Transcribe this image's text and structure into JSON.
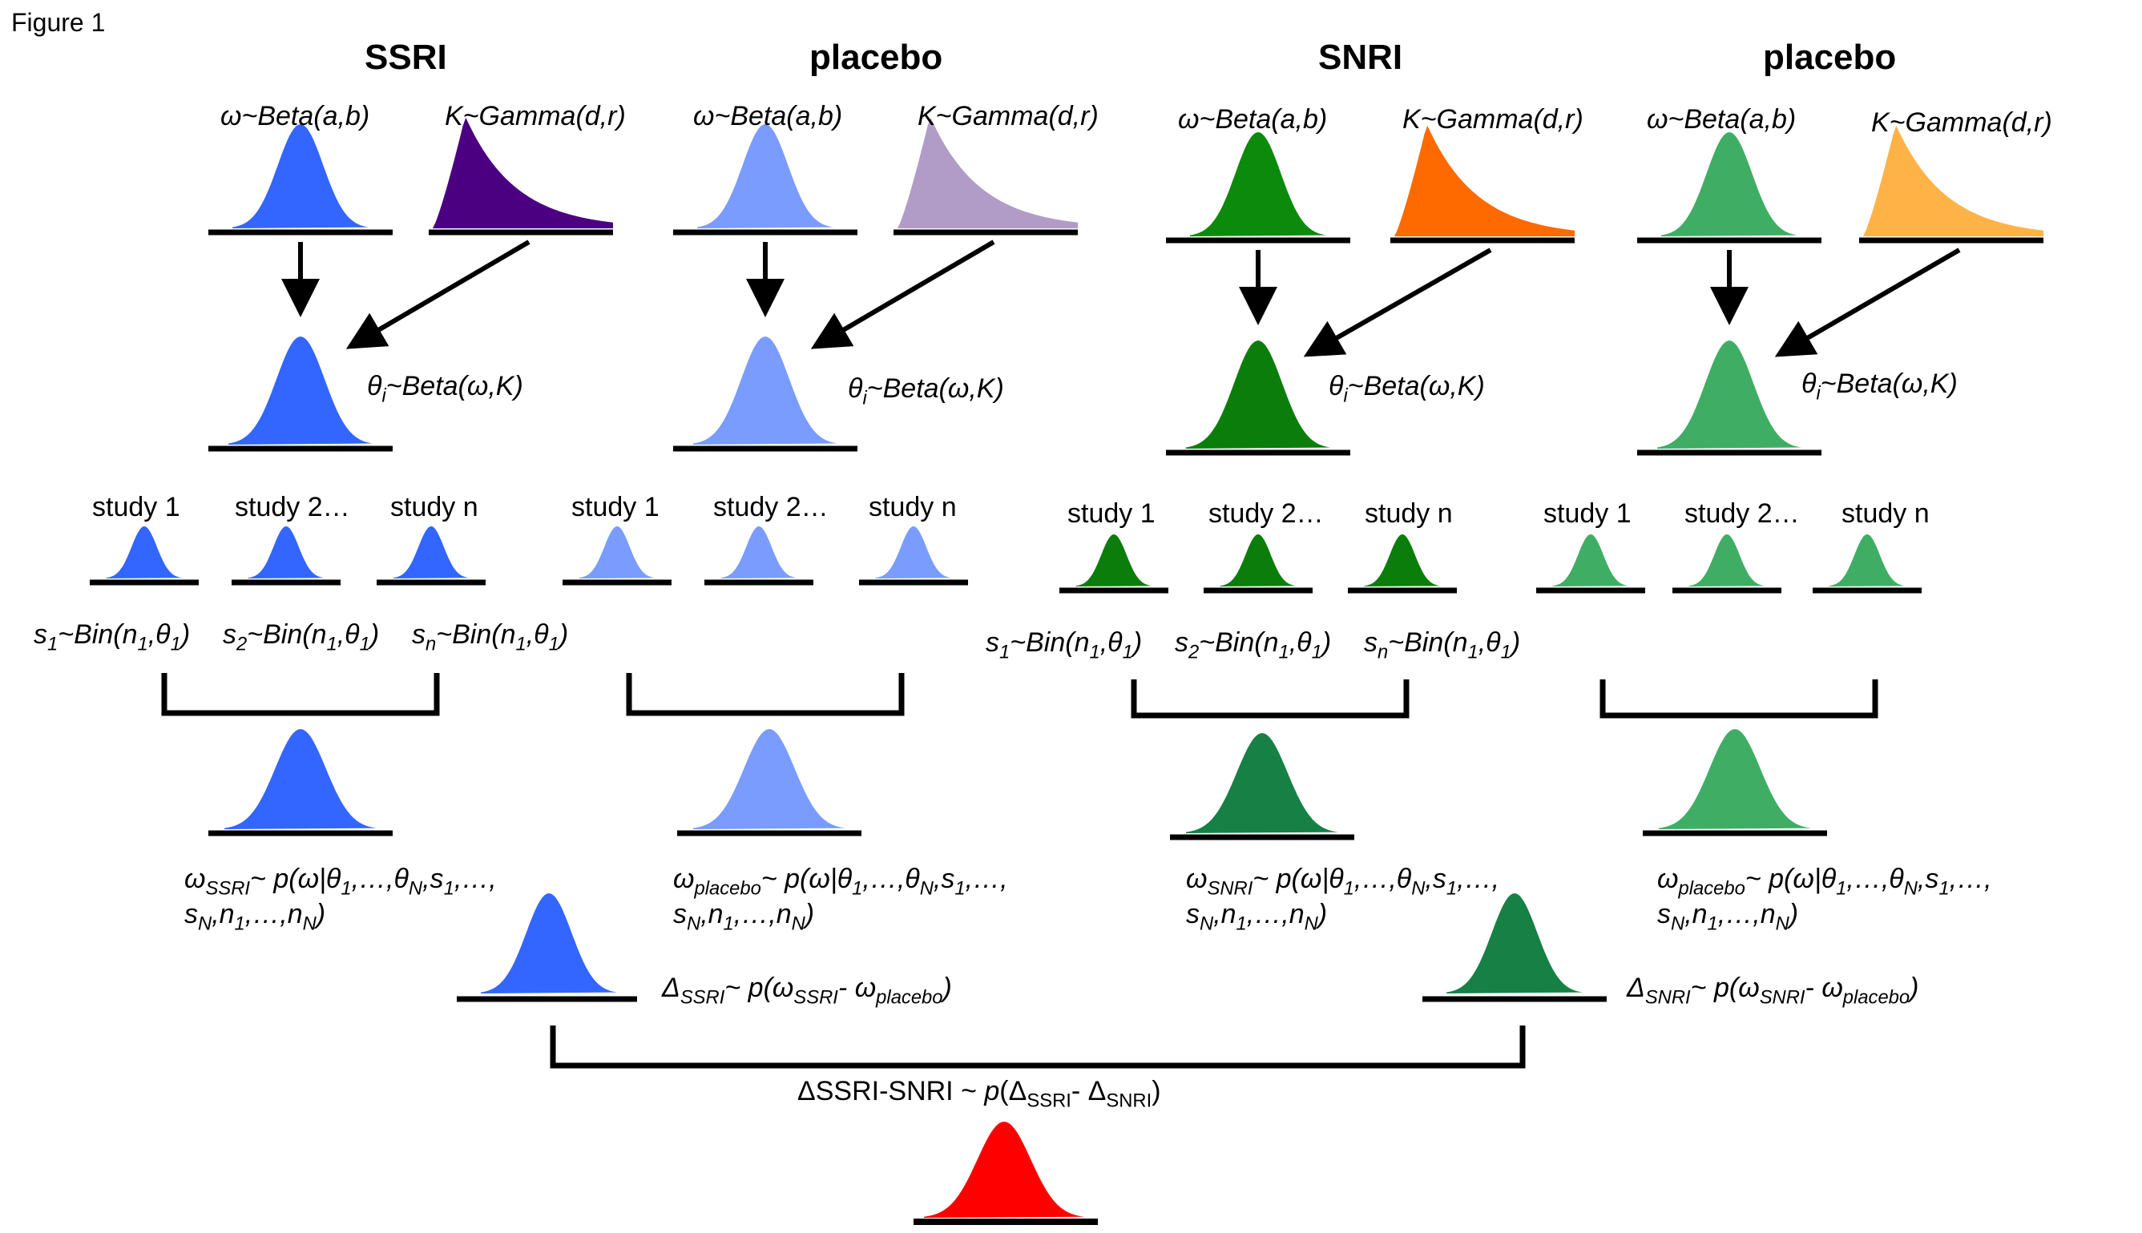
{
  "figure_label": "Figure 1",
  "groups": [
    {
      "title": "SSRI",
      "omega_label": "ω~Beta(a,b)",
      "kappa_label": "K~Gamma(d,r)",
      "theta_label": "θ",
      "theta_sub": "i",
      "theta_rest": "~Beta(ω,K)",
      "studies": [
        "study 1",
        "study 2…",
        "study n"
      ],
      "likelihoods": [
        {
          "s": "s",
          "ssub": "1",
          "rest": "~Bin(n",
          "nsub": "1",
          "th": ",θ",
          "thsub": "1",
          "end": ")"
        },
        {
          "s": "s",
          "ssub": "2",
          "rest": "~Bin(n",
          "nsub": "1",
          "th": ",θ",
          "thsub": "1",
          "end": ")"
        },
        {
          "s": "s",
          "ssub": "n",
          "rest": "~Bin(n",
          "nsub": "1",
          "th": ",θ",
          "thsub": "1",
          "end": ")"
        }
      ],
      "post_sub": "SSRI",
      "post_line1": "~ p(ω|θ",
      "post_line2": "s",
      "colors": {
        "omega": "#3366ff",
        "kappa": "#4b0082",
        "theta": "#3366ff",
        "study": "#3366ff",
        "post": "#3366ff"
      }
    },
    {
      "title": "placebo",
      "omega_label": "ω~Beta(a,b)",
      "kappa_label": "K~Gamma(d,r)",
      "theta_label": "θ",
      "theta_sub": "i",
      "theta_rest": "~Beta(ω,K)",
      "studies": [
        "study 1",
        "study 2…",
        "study n"
      ],
      "post_sub": "placebo",
      "post_line1": "~ p(ω|θ",
      "post_line2": "s",
      "colors": {
        "omega": "#7a9cff",
        "kappa": "#b19cc8",
        "theta": "#7a9cff",
        "study": "#7a9cff",
        "post": "#7a9cff"
      }
    },
    {
      "title": "SNRI",
      "omega_label": "ω~Beta(a,b)",
      "kappa_label": "K~Gamma(d,r)",
      "theta_label": "θ",
      "theta_sub": "i",
      "theta_rest": "~Beta(ω,K)",
      "studies": [
        "study 1",
        "study 2…",
        "study n"
      ],
      "post_sub": "SNRI",
      "post_line1": "~ p(ω|θ",
      "post_line2": "s",
      "colors": {
        "omega": "#0b8a0b",
        "kappa": "#ff6a00",
        "theta": "#0b7d0b",
        "study": "#0b7d0b",
        "post": "#168045"
      }
    },
    {
      "title": "placebo",
      "omega_label": "ω~Beta(a,b)",
      "kappa_label": "K~Gamma(d,r)",
      "theta_label": "θ",
      "theta_sub": "i",
      "theta_rest": "~Beta(ω,K)",
      "studies": [
        "study 1",
        "study 2…",
        "study n"
      ],
      "post_sub": "placebo",
      "post_line1": "~ p(ω|θ",
      "post_line2": "s",
      "colors": {
        "omega": "#3fae64",
        "kappa": "#ffb347",
        "theta": "#3fae64",
        "study": "#3fae64",
        "post": "#3fae64"
      }
    }
  ],
  "delta_ssri": {
    "sym": "Δ",
    "sub": "SSRI",
    "text": "~ p(ω",
    "color": "#3366ff"
  },
  "delta_snri": {
    "sym": "Δ",
    "sub": "SNRI",
    "text": "~ p(ω",
    "color": "#168045"
  },
  "final": {
    "text": "ΔSSRI-SNRI ~ p(Δ",
    "color": "#ff0000"
  }
}
